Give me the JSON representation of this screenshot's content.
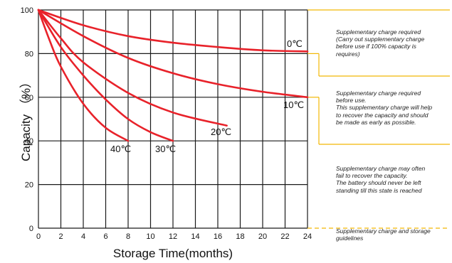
{
  "chart_data": {
    "type": "line",
    "xlabel": "Storage Time(months)",
    "ylabel": "Capacity （%）",
    "xlim": [
      0,
      24
    ],
    "ylim": [
      0,
      100
    ],
    "x_ticks": [
      "0",
      "2",
      "4",
      "6",
      "8",
      "10",
      "12",
      "14",
      "16",
      "18",
      "20",
      "22",
      "24"
    ],
    "y_ticks": [
      "0",
      "20",
      "40",
      "60",
      "80",
      "100"
    ],
    "grid": true,
    "series": [
      {
        "name": "0℃",
        "x": [
          0,
          4,
          8,
          12,
          16,
          20,
          24
        ],
        "y": [
          100,
          93,
          88,
          85,
          83,
          81.5,
          81
        ]
      },
      {
        "name": "10℃",
        "x": [
          0,
          4,
          8,
          12,
          16,
          20,
          24
        ],
        "y": [
          100,
          88,
          78,
          71,
          66,
          62.5,
          60
        ]
      },
      {
        "name": "20℃",
        "x": [
          0,
          2,
          4,
          8,
          12,
          16.8
        ],
        "y": [
          100,
          87,
          76,
          62,
          53,
          47
        ]
      },
      {
        "name": "30℃",
        "x": [
          0,
          2,
          4,
          6,
          8,
          10,
          12
        ],
        "y": [
          100,
          83,
          70,
          59,
          50,
          44,
          40
        ]
      },
      {
        "name": "40℃",
        "x": [
          0,
          1,
          2,
          4,
          6,
          8
        ],
        "y": [
          100,
          86,
          74,
          57,
          46,
          40
        ]
      }
    ]
  },
  "colors": {
    "curves": "#e8222a",
    "grid": "#1a1a1a",
    "guide": "#f2b705"
  },
  "annotations": {
    "title": "Supplementary charge and storage guidelines",
    "zones": [
      {
        "id": "zone1",
        "lines": [
          "Supplementary charge required",
          "(Carry out supplementary charge",
          "before use if 100% capacity is",
          "requires)"
        ]
      },
      {
        "id": "zone2",
        "lines": [
          "Supplementary charge required",
          "before use.",
          "This supplementary charge will help",
          "to recover the capacity and should",
          "be made  as early as possible."
        ]
      },
      {
        "id": "zone3",
        "lines": [
          "Supplementary charge may often",
          "fail to recover the capacity.",
          "The battery should never be left",
          "standing till this state is reached"
        ]
      }
    ],
    "footer_lines": [
      "Supplementary charge and storage",
      "guidelines"
    ]
  }
}
